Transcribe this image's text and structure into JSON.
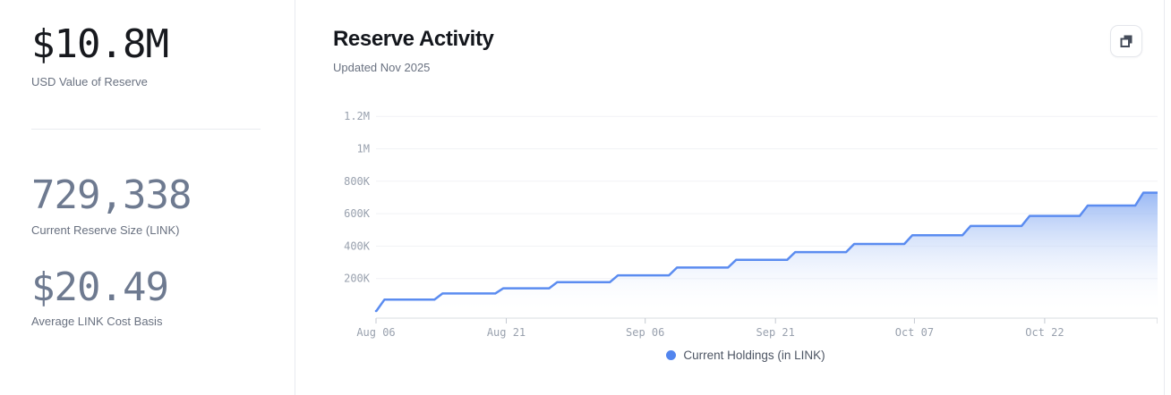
{
  "stats": [
    {
      "value": "$10.8M",
      "label": "USD Value of Reserve"
    },
    {
      "value": "729,338",
      "label": "Current Reserve Size (LINK)"
    },
    {
      "value": "$20.49",
      "label": "Average LINK Cost Basis"
    }
  ],
  "panel": {
    "title": "Reserve Activity",
    "subtitle": "Updated Nov 2025",
    "legend_label": "Current Holdings (in LINK)",
    "action_icon": "copy-icon"
  },
  "colors": {
    "line": "#5b8cf0",
    "fill_top": "#8fb1f3",
    "legend_dot": "#5285ee",
    "grid": "#f1f2f5",
    "axis_line": "#d9dce1",
    "tick": "#c4c9d1",
    "tick_text": "#99a1ae",
    "icon_dark": "#454c5a",
    "border": "#e8eaef"
  },
  "chart_data": {
    "type": "area",
    "title": "Reserve Activity",
    "subtitle": "Updated Nov 2025",
    "legend": [
      "Current Holdings (in LINK)"
    ],
    "legend_position": "bottom-center",
    "interpolation": "stepped (weekly reserve top-ups, rounded ramps)",
    "grid": "horizontal only",
    "xlabel": "",
    "ylabel": "",
    "x_range_days": [
      0,
      90
    ],
    "ylim": [
      0,
      1300000
    ],
    "x_ticks": [
      {
        "label": "Aug 06",
        "day": 0
      },
      {
        "label": "Aug 21",
        "day": 15
      },
      {
        "label": "Sep 06",
        "day": 31
      },
      {
        "label": "Sep 21",
        "day": 46
      },
      {
        "label": "Oct 07",
        "day": 62
      },
      {
        "label": "Oct 22",
        "day": 77
      }
    ],
    "y_ticks": [
      {
        "label": "200K",
        "value": 200000
      },
      {
        "label": "400K",
        "value": 400000
      },
      {
        "label": "600K",
        "value": 600000
      },
      {
        "label": "800K",
        "value": 800000
      },
      {
        "label": "1M",
        "value": 1000000
      },
      {
        "label": "1.2M",
        "value": 1200000
      }
    ],
    "points": [
      {
        "date": "Aug 06",
        "day": 0,
        "holdings": 0
      },
      {
        "date": "Aug 06",
        "day": 0.5,
        "holdings": 70000
      },
      {
        "date": "Aug 13",
        "day": 7.2,
        "holdings": 108000
      },
      {
        "date": "Aug 20",
        "day": 14.2,
        "holdings": 140000
      },
      {
        "date": "Aug 26",
        "day": 20.4,
        "holdings": 178000
      },
      {
        "date": "Sep 02",
        "day": 27.4,
        "holdings": 220000
      },
      {
        "date": "Sep 09",
        "day": 34.2,
        "holdings": 268000
      },
      {
        "date": "Sep 16",
        "day": 41.0,
        "holdings": 315000
      },
      {
        "date": "Sep 23",
        "day": 47.8,
        "holdings": 363000
      },
      {
        "date": "Sep 30",
        "day": 54.6,
        "holdings": 413000
      },
      {
        "date": "Oct 06",
        "day": 61.3,
        "holdings": 467000
      },
      {
        "date": "Oct 13",
        "day": 68.0,
        "holdings": 524000
      },
      {
        "date": "Oct 20",
        "day": 74.8,
        "holdings": 586000
      },
      {
        "date": "Oct 26",
        "day": 81.5,
        "holdings": 650000
      },
      {
        "date": "Nov 02",
        "day": 87.9,
        "holdings": 729338
      }
    ]
  }
}
